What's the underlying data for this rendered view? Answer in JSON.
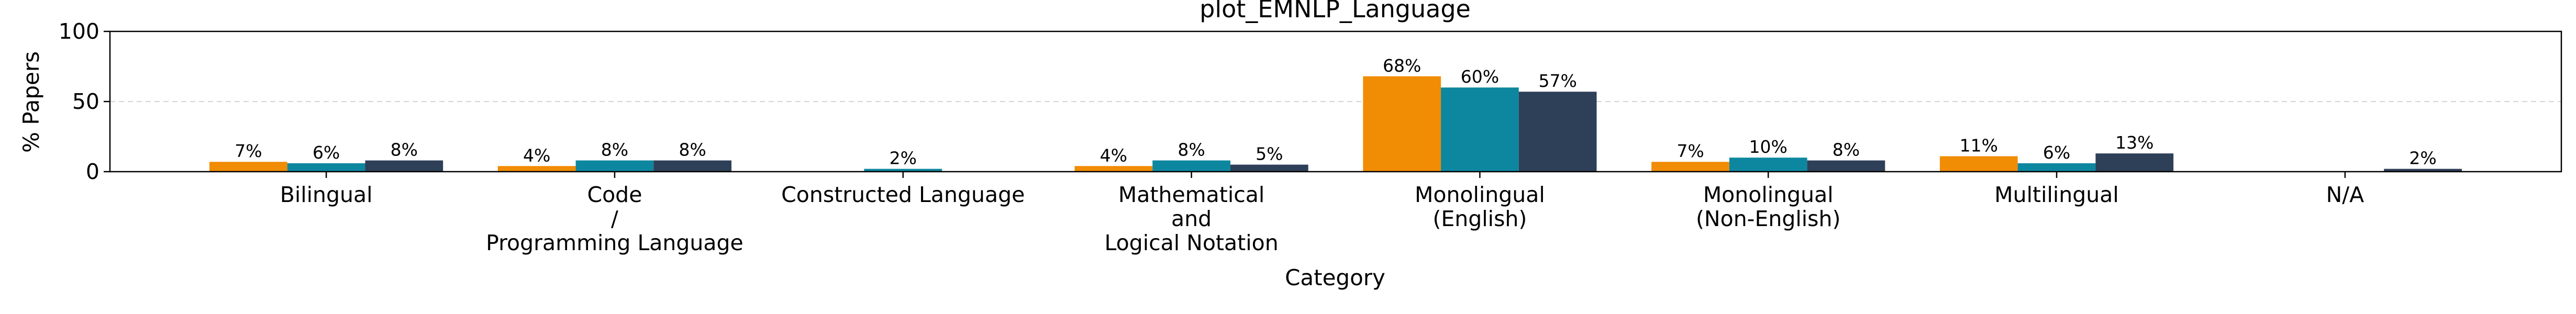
{
  "chart_data": {
    "type": "bar",
    "title": "plot_EMNLP_Language",
    "xlabel": "Category",
    "ylabel": "% Papers",
    "ylim": [
      0,
      100
    ],
    "yticks": [
      0,
      50,
      100
    ],
    "grid": "horizontal dashed",
    "legend": "none",
    "categories": [
      "Bilingual",
      "Code\n/\nProgramming Language",
      "Constructed Language",
      "Mathematical\nand\nLogical Notation",
      "Monolingual\n(English)",
      "Monolingual\n(Non-English)",
      "Multilingual",
      "N/A"
    ],
    "series": [
      {
        "color": "#f18c05",
        "values": [
          7,
          4,
          0,
          4,
          68,
          7,
          11,
          0
        ],
        "labels": [
          "7%",
          "4%",
          "",
          "4%",
          "68%",
          "7%",
          "11%",
          ""
        ]
      },
      {
        "color": "#0d879f",
        "values": [
          6,
          8,
          2,
          8,
          60,
          10,
          6,
          0
        ],
        "labels": [
          "6%",
          "8%",
          "2%",
          "8%",
          "60%",
          "10%",
          "6%",
          ""
        ]
      },
      {
        "color": "#2e3f58",
        "values": [
          8,
          8,
          0,
          5,
          57,
          8,
          13,
          2
        ],
        "labels": [
          "8%",
          "8%",
          "",
          "5%",
          "57%",
          "8%",
          "13%",
          "2%"
        ]
      }
    ]
  }
}
